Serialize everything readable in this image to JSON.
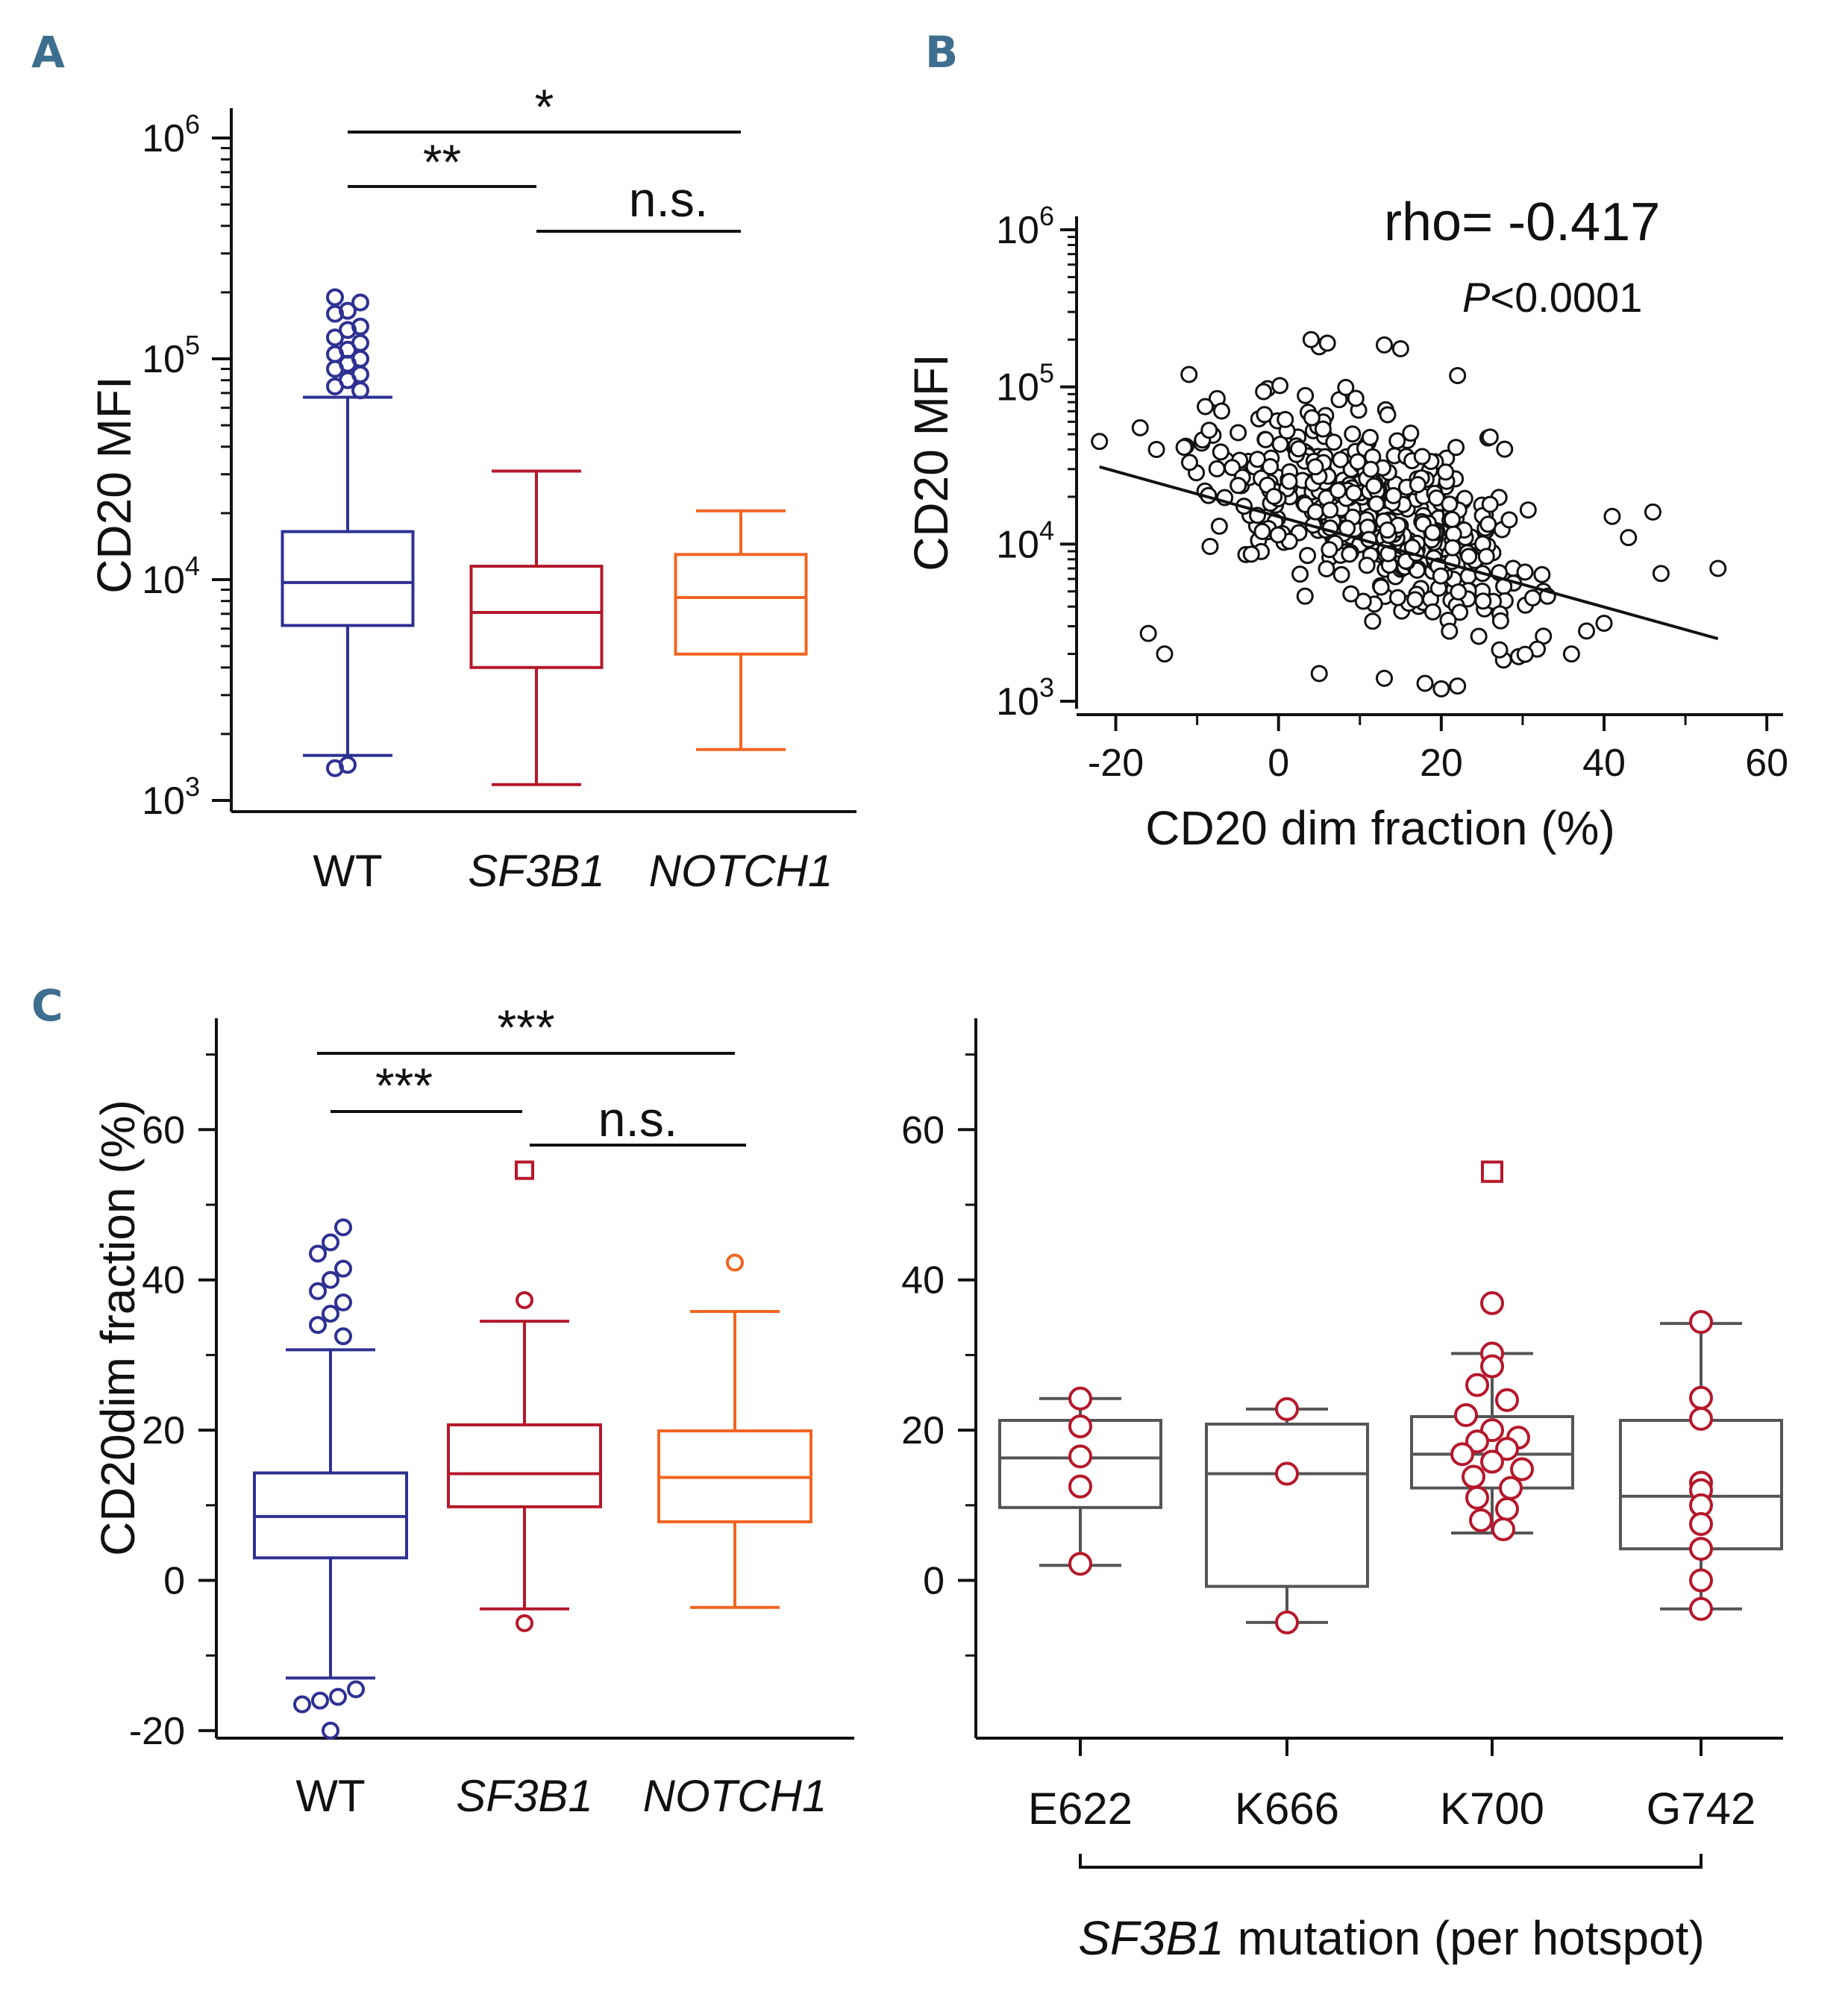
{
  "panels": {
    "a": "A",
    "b": "B",
    "c": "C"
  },
  "chart_data": [
    {
      "type": "box",
      "panel": "A",
      "title": "",
      "ylabel": "CD20 MFI",
      "yscale": "log",
      "ylim": [
        1000,
        1000000
      ],
      "y_ticks": [
        1000,
        10000,
        100000,
        1000000
      ],
      "y_tick_labels": [
        {
          "base": "10",
          "exp": "3"
        },
        {
          "base": "10",
          "exp": "4"
        },
        {
          "base": "10",
          "exp": "5"
        },
        {
          "base": "10",
          "exp": "6"
        }
      ],
      "categories": [
        "WT",
        "SF3B1",
        "NOTCH1"
      ],
      "category_italic": [
        false,
        true,
        true
      ],
      "colors": [
        "#2e3192",
        "#b5182b",
        "#f26522"
      ],
      "boxes": [
        {
          "whisker_low": 1600,
          "q1": 6200,
          "median": 9700,
          "q3": 16500,
          "whisker_high": 67000,
          "outliers": [
            1400,
            1450,
            72000,
            75000,
            80000,
            85000,
            90000,
            95000,
            100000,
            105000,
            110000,
            118000,
            125000,
            135000,
            140000,
            160000,
            165000,
            180000,
            190000
          ]
        },
        {
          "whisker_low": 1180,
          "q1": 4000,
          "median": 7100,
          "q3": 11500,
          "whisker_high": 31000,
          "outliers": []
        },
        {
          "whisker_low": 1700,
          "q1": 4600,
          "median": 8300,
          "q3": 13000,
          "whisker_high": 20500,
          "outliers": []
        }
      ],
      "significance": [
        {
          "from": 0,
          "to": 2,
          "label": "*"
        },
        {
          "from": 0,
          "to": 1,
          "label": "**"
        },
        {
          "from": 1,
          "to": 2,
          "label": "n.s."
        }
      ]
    },
    {
      "type": "scatter",
      "panel": "B",
      "xlabel": "CD20 dim fraction (%)",
      "ylabel": "CD20 MFI",
      "yscale": "log",
      "xlim": [
        -25,
        62
      ],
      "ylim": [
        1000,
        1000000
      ],
      "x_ticks": [
        -20,
        0,
        20,
        40,
        60
      ],
      "x_tick_labels": [
        "-20",
        "0",
        "20",
        "40",
        "60"
      ],
      "y_ticks": [
        1000,
        10000,
        100000,
        1000000
      ],
      "y_tick_labels": [
        {
          "base": "10",
          "exp": "3"
        },
        {
          "base": "10",
          "exp": "4"
        },
        {
          "base": "10",
          "exp": "5"
        },
        {
          "base": "10",
          "exp": "6"
        }
      ],
      "annotation_rho": "rho= -0.417",
      "annotation_p_italic": "P",
      "annotation_p_rest": "<0.0001",
      "regression": {
        "x0": -22,
        "y0": 31000,
        "x1": 54,
        "y1": 2500
      },
      "n_points": 450,
      "outlier_points": [
        [
          -22,
          45000
        ],
        [
          -16,
          2700
        ],
        [
          -14,
          2000
        ],
        [
          -17,
          55000
        ],
        [
          -15,
          40000
        ],
        [
          -11,
          120000
        ],
        [
          -9,
          75000
        ],
        [
          5,
          180000
        ],
        [
          4,
          200000
        ],
        [
          6,
          190000
        ],
        [
          13,
          185000
        ],
        [
          15,
          175000
        ],
        [
          22,
          118000
        ],
        [
          26,
          48000
        ],
        [
          41,
          15000
        ],
        [
          43,
          11000
        ],
        [
          46,
          16000
        ],
        [
          47,
          6500
        ],
        [
          54,
          7000
        ],
        [
          36,
          2000
        ],
        [
          18,
          1300
        ],
        [
          20,
          1200
        ],
        [
          22,
          1250
        ],
        [
          13,
          1400
        ],
        [
          5,
          1500
        ]
      ],
      "point_style": "open-circle"
    },
    {
      "type": "box",
      "panel": "C-left",
      "ylabel": "CD20dim fraction (%)",
      "ylim": [
        -22,
        75
      ],
      "y_ticks": [
        -20,
        0,
        20,
        40,
        60
      ],
      "y_tick_labels": [
        "-20",
        "0",
        "20",
        "40",
        "60"
      ],
      "categories": [
        "WT",
        "SF3B1",
        "NOTCH1"
      ],
      "category_italic": [
        false,
        true,
        true
      ],
      "colors": [
        "#2e3192",
        "#b5182b",
        "#f26522"
      ],
      "boxes": [
        {
          "whisker_low": -13,
          "q1": 3,
          "median": 8.5,
          "q3": 14.3,
          "whisker_high": 30.7,
          "outliers": [
            -20,
            -16.5,
            -16,
            -15.5,
            -14.5,
            32.5,
            34,
            35.5,
            37,
            38.5,
            40,
            41.5,
            43.5,
            45,
            47
          ]
        },
        {
          "whisker_low": -3.8,
          "q1": 9.8,
          "median": 14.2,
          "q3": 20.7,
          "whisker_high": 34.5,
          "outliers": [
            -5.7,
            37.3
          ],
          "square_outliers": [
            54.6
          ]
        },
        {
          "whisker_low": -3.6,
          "q1": 7.8,
          "median": 13.7,
          "q3": 19.9,
          "whisker_high": 35.8,
          "outliers": [
            42.3
          ]
        }
      ],
      "significance": [
        {
          "from": 0,
          "to": 2,
          "label": "***"
        },
        {
          "from": 0,
          "to": 1,
          "label": "***"
        },
        {
          "from": 1,
          "to": 2,
          "label": "n.s."
        }
      ]
    },
    {
      "type": "box",
      "panel": "C-right",
      "xlabel_italic": "SF3B1",
      "xlabel_rest": " mutation (per hotspot)",
      "ylim": [
        -22,
        75
      ],
      "y_ticks": [
        0,
        20,
        40,
        60
      ],
      "y_tick_labels": [
        "0",
        "20",
        "40",
        "60"
      ],
      "categories": [
        "E622",
        "K666",
        "K700",
        "G742"
      ],
      "box_color": "#555555",
      "point_color": "#b5182b",
      "boxes": [
        {
          "whisker_low": 2,
          "q1": 9.7,
          "median": 16.3,
          "q3": 21.3,
          "whisker_high": 24.2,
          "points": [
            24.2,
            20.5,
            16.5,
            12.5,
            2.2
          ]
        },
        {
          "whisker_low": -5.6,
          "q1": -0.8,
          "median": 14.2,
          "q3": 20.8,
          "whisker_high": 22.8,
          "points": [
            22.8,
            14.2,
            -5.6
          ]
        },
        {
          "whisker_low": 6.3,
          "q1": 12.3,
          "median": 16.8,
          "q3": 21.8,
          "whisker_high": 30.2,
          "points": [
            36.9,
            30.2,
            28.5,
            26.0,
            24.0,
            22.0,
            20.0,
            19.0,
            18.5,
            17.5,
            16.8,
            15.8,
            14.8,
            13.8,
            12.3,
            11.0,
            9.5,
            8.0,
            6.8
          ],
          "square_points": [
            54.4
          ]
        },
        {
          "whisker_low": -3.8,
          "q1": 4.2,
          "median": 11.2,
          "q3": 21.3,
          "whisker_high": 34.2,
          "points": [
            34.4,
            24.3,
            21.5,
            13.0,
            12.0,
            10.0,
            7.5,
            4.2,
            0.0,
            -3.8
          ]
        }
      ]
    }
  ]
}
